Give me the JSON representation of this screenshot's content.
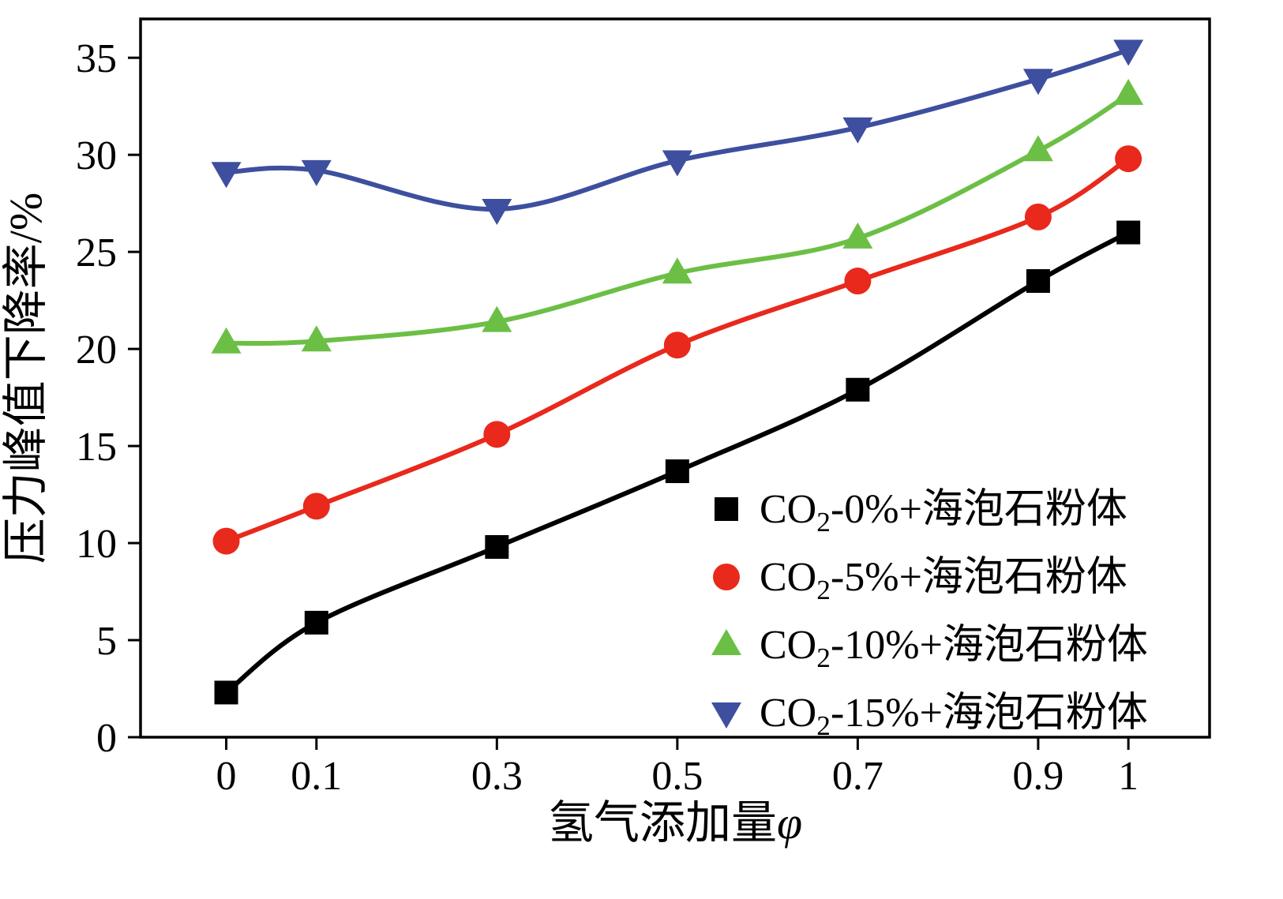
{
  "chart_data": {
    "type": "line",
    "title": "",
    "xlabel": "氢气添加量φ",
    "ylabel": "压力峰值下降率/%",
    "x": [
      0,
      0.1,
      0.3,
      0.5,
      0.7,
      0.9,
      1
    ],
    "xticks": [
      "0",
      "0.1",
      "0.3",
      "0.5",
      "0.7",
      "0.9",
      "1"
    ],
    "xtick_values": [
      0,
      0.1,
      0.3,
      0.5,
      0.7,
      0.9,
      1
    ],
    "yticks": [
      "0",
      "5",
      "10",
      "15",
      "20",
      "25",
      "30",
      "35"
    ],
    "ytick_values": [
      0,
      5,
      10,
      15,
      20,
      25,
      30,
      35
    ],
    "xlim": [
      -0.095,
      1.09
    ],
    "ylim": [
      0,
      37
    ],
    "grid": false,
    "line_style": "smooth",
    "legend_position": "lower-right",
    "series": [
      {
        "name": "CO2-0%+海泡石粉体",
        "marker": "square",
        "color": "#000000",
        "values": [
          2.3,
          5.9,
          9.8,
          13.7,
          17.9,
          23.5,
          26.0
        ]
      },
      {
        "name": "CO2-5%+海泡石粉体",
        "marker": "circle",
        "color": "#e8291c",
        "values": [
          10.1,
          11.9,
          15.6,
          20.2,
          23.5,
          26.8,
          29.8
        ]
      },
      {
        "name": "CO2-10%+海泡石粉体",
        "marker": "triangle-up",
        "color": "#6cbf45",
        "values": [
          20.3,
          20.4,
          21.4,
          23.9,
          25.7,
          30.2,
          33.1
        ]
      },
      {
        "name": "CO2-15%+海泡石粉体",
        "marker": "triangle-down",
        "color": "#3d4f9e",
        "values": [
          29.1,
          29.2,
          27.2,
          29.7,
          31.4,
          33.9,
          35.4
        ]
      }
    ]
  }
}
